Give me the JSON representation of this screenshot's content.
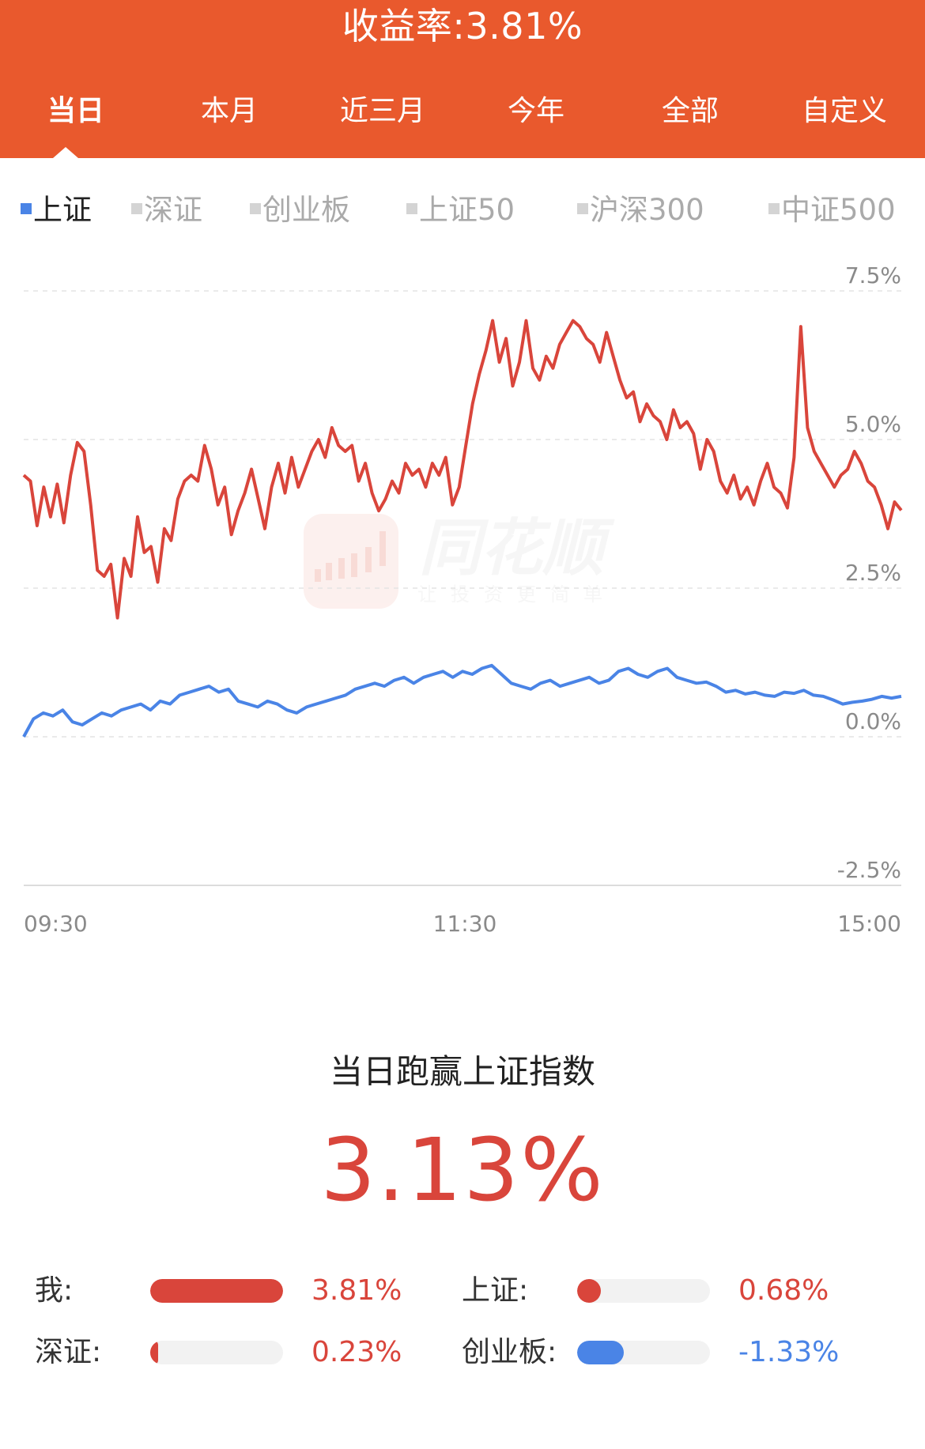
{
  "header": {
    "title": "收益率:3.81%",
    "tabs": [
      {
        "label": "当日",
        "active": true
      },
      {
        "label": "本月",
        "active": false
      },
      {
        "label": "近三月",
        "active": false
      },
      {
        "label": "今年",
        "active": false
      },
      {
        "label": "全部",
        "active": false
      },
      {
        "label": "自定义",
        "active": false
      }
    ],
    "bg_color": "#e9592d"
  },
  "indices": [
    {
      "label": "上证",
      "active": true
    },
    {
      "label": "深证",
      "active": false
    },
    {
      "label": "创业板",
      "active": false
    },
    {
      "label": "上证50",
      "active": false
    },
    {
      "label": "沪深300",
      "active": false
    },
    {
      "label": "中证500",
      "active": false
    }
  ],
  "watermark": {
    "brand": "同花顺",
    "slogan": "让投资更简单"
  },
  "chart_data": {
    "type": "line",
    "x_ticks": [
      "09:30",
      "11:30",
      "15:00"
    ],
    "y_ticks": [
      "7.5%",
      "5.0%",
      "2.5%",
      "0.0%",
      "-2.5%"
    ],
    "ylim": [
      -2.5,
      7.5
    ],
    "grid": true,
    "series": [
      {
        "color": "#d9453b",
        "values": [
          4.4,
          4.3,
          3.55,
          4.2,
          3.7,
          4.25,
          3.6,
          4.4,
          4.95,
          4.8,
          3.9,
          2.8,
          2.7,
          2.9,
          2.0,
          3.0,
          2.7,
          3.7,
          3.1,
          3.2,
          2.6,
          3.5,
          3.3,
          4.0,
          4.3,
          4.4,
          4.3,
          4.9,
          4.5,
          3.9,
          4.2,
          3.4,
          3.8,
          4.1,
          4.5,
          4.0,
          3.5,
          4.2,
          4.6,
          4.1,
          4.7,
          4.2,
          4.5,
          4.8,
          5.0,
          4.7,
          5.2,
          4.9,
          4.8,
          4.9,
          4.3,
          4.6,
          4.1,
          3.8,
          4.0,
          4.3,
          4.1,
          4.6,
          4.4,
          4.5,
          4.2,
          4.6,
          4.4,
          4.7,
          3.9,
          4.2,
          4.9,
          5.6,
          6.1,
          6.5,
          7.0,
          6.3,
          6.7,
          5.9,
          6.3,
          7.0,
          6.2,
          6.0,
          6.4,
          6.2,
          6.6,
          6.8,
          7.0,
          6.9,
          6.7,
          6.6,
          6.3,
          6.8,
          6.4,
          6.0,
          5.7,
          5.8,
          5.3,
          5.6,
          5.4,
          5.3,
          5.0,
          5.5,
          5.2,
          5.3,
          5.1,
          4.5,
          5.0,
          4.8,
          4.3,
          4.1,
          4.4,
          4.0,
          4.2,
          3.9,
          4.3,
          4.6,
          4.2,
          4.1,
          3.85,
          4.7,
          6.9,
          5.2,
          4.8,
          4.6,
          4.4,
          4.2,
          4.4,
          4.5,
          4.8,
          4.6,
          4.3,
          4.2,
          3.9,
          3.5,
          3.95,
          3.81
        ]
      },
      {
        "color": "#4a84e6",
        "values": [
          0.0,
          0.3,
          0.4,
          0.35,
          0.45,
          0.25,
          0.2,
          0.3,
          0.4,
          0.35,
          0.45,
          0.5,
          0.55,
          0.45,
          0.6,
          0.55,
          0.7,
          0.75,
          0.8,
          0.85,
          0.75,
          0.8,
          0.6,
          0.55,
          0.5,
          0.6,
          0.55,
          0.45,
          0.4,
          0.5,
          0.55,
          0.6,
          0.65,
          0.7,
          0.8,
          0.85,
          0.9,
          0.85,
          0.95,
          1.0,
          0.9,
          1.0,
          1.05,
          1.1,
          1.0,
          1.1,
          1.05,
          1.15,
          1.2,
          1.05,
          0.9,
          0.85,
          0.8,
          0.9,
          0.95,
          0.85,
          0.9,
          0.95,
          1.0,
          0.9,
          0.95,
          1.1,
          1.15,
          1.05,
          1.0,
          1.1,
          1.15,
          1.0,
          0.95,
          0.9,
          0.92,
          0.85,
          0.75,
          0.78,
          0.72,
          0.75,
          0.7,
          0.68,
          0.75,
          0.73,
          0.78,
          0.7,
          0.68,
          0.62,
          0.55,
          0.58,
          0.6,
          0.63,
          0.68,
          0.65,
          0.68
        ]
      }
    ]
  },
  "summary": {
    "title": "当日跑赢上证指数",
    "value": "3.13%",
    "color": "#d9453b"
  },
  "stats": [
    {
      "label": "我:",
      "value": "3.81%",
      "fraction": 1.0,
      "color": "#d9453b"
    },
    {
      "label": "上证:",
      "value": "0.68%",
      "fraction": 0.18,
      "color": "#d9453b"
    },
    {
      "label": "深证:",
      "value": "0.23%",
      "fraction": 0.06,
      "color": "#d9453b"
    },
    {
      "label": "创业板:",
      "value": "-1.33%",
      "fraction": 0.35,
      "color": "#4a84e6"
    }
  ]
}
